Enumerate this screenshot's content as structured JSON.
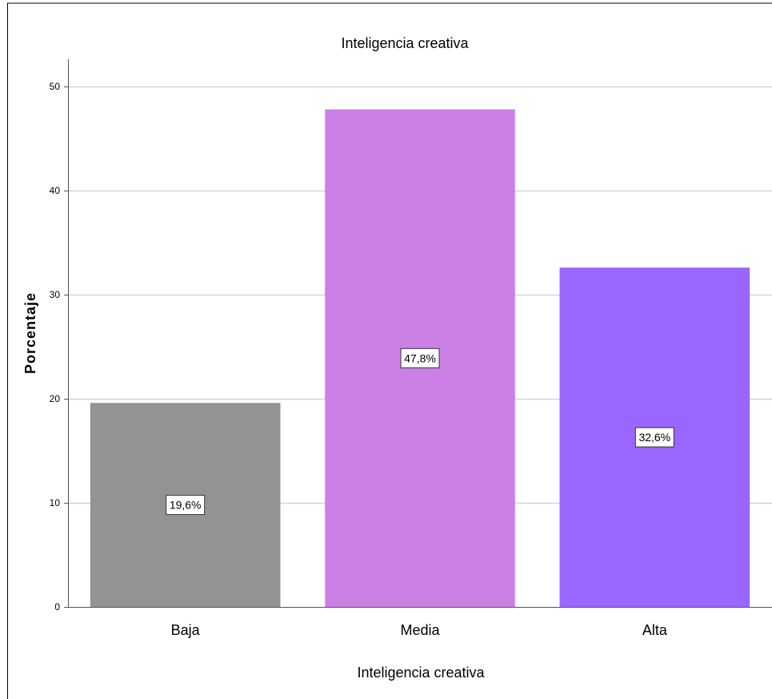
{
  "chart_data": {
    "type": "bar",
    "title": "Inteligencia creativa",
    "xlabel": "Inteligencia creativa",
    "ylabel": "Porcentaje",
    "categories": [
      "Baja",
      "Media",
      "Alta"
    ],
    "values": [
      19.6,
      47.8,
      32.6
    ],
    "data_labels": [
      "19,6%",
      "47,8%",
      "32,6%"
    ],
    "colors": [
      "#959391",
      "#cb80e6",
      "#9966ff"
    ],
    "yticks": [
      0,
      10,
      20,
      30,
      40,
      50
    ],
    "ylim": [
      0,
      50
    ],
    "grid": true,
    "legend": "none"
  }
}
